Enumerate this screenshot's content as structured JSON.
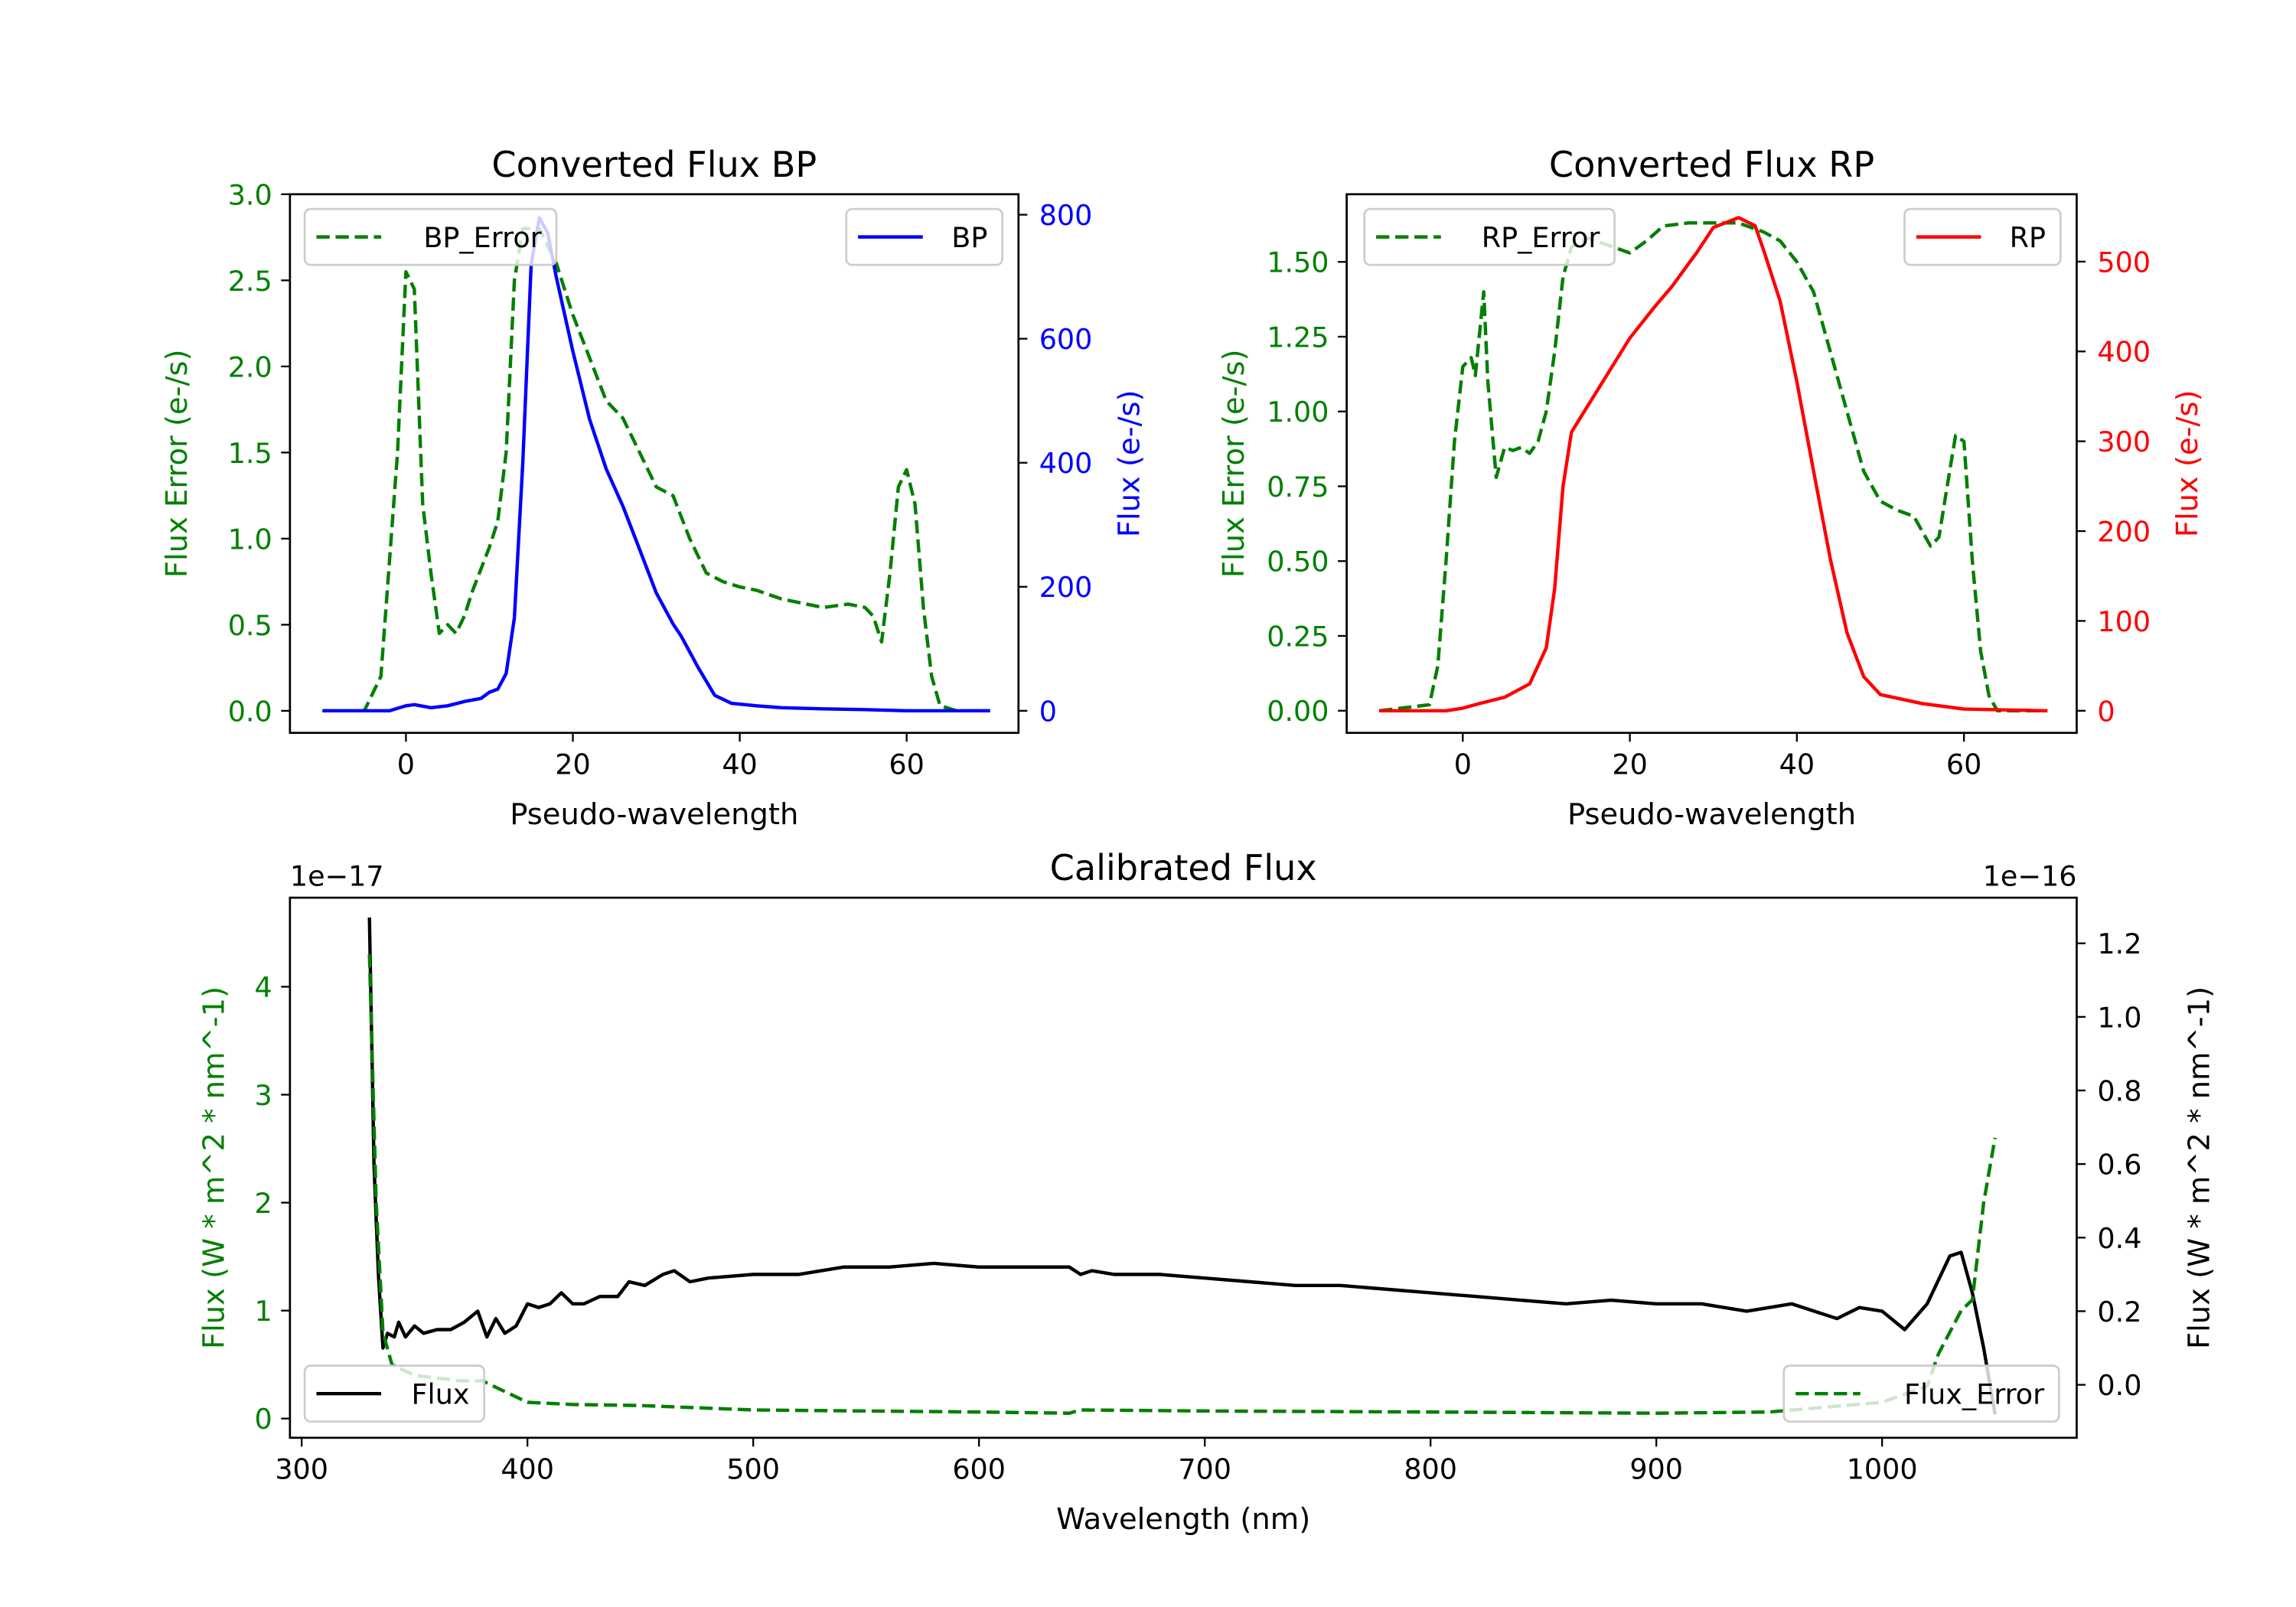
{
  "colors": {
    "green": "#008000",
    "blue": "#0000ff",
    "red": "#ff0000",
    "black": "#000000"
  },
  "chart_data": [
    {
      "type": "line",
      "title": "Converted Flux BP",
      "xlabel": "Pseudo-wavelength",
      "ylabel_left": "Flux Error (e-/s)",
      "ylabel_right": "Flux (e-/s)",
      "xlim": [
        -13.9,
        73.4
      ],
      "ylim_left": [
        -0.128,
        3.0
      ],
      "ylim_right": [
        -35.6,
        833
      ],
      "xticks": [
        0,
        20,
        40,
        60
      ],
      "yticks_left": [
        "0.0",
        "0.5",
        "1.0",
        "1.5",
        "2.0",
        "2.5",
        "3.0"
      ],
      "yticks_right": [
        "0",
        "200",
        "400",
        "600",
        "800"
      ],
      "left_color": "#008000",
      "right_color": "#0000ff",
      "series": [
        {
          "name": "BP_Error",
          "axis": "left",
          "style": "dashed",
          "color": "#008000",
          "legend": "upper-left",
          "x": [
            -10,
            -5,
            -3,
            -1,
            0,
            1,
            2,
            3,
            4,
            5,
            6,
            7,
            8,
            10,
            11,
            12,
            13,
            14,
            16,
            18,
            20,
            22,
            24,
            26,
            28,
            30,
            32,
            34,
            36,
            38,
            40,
            42,
            45,
            48,
            50,
            53,
            55,
            56,
            57,
            58,
            59,
            60,
            61,
            62,
            63,
            64,
            66,
            70
          ],
          "y": [
            0,
            0,
            0.2,
            1.5,
            2.55,
            2.45,
            1.2,
            0.8,
            0.45,
            0.5,
            0.45,
            0.55,
            0.7,
            0.95,
            1.1,
            1.5,
            2.5,
            2.8,
            2.8,
            2.6,
            2.3,
            2.05,
            1.8,
            1.7,
            1.5,
            1.3,
            1.25,
            1.0,
            0.8,
            0.75,
            0.72,
            0.7,
            0.65,
            0.62,
            0.6,
            0.62,
            0.6,
            0.55,
            0.4,
            0.8,
            1.3,
            1.4,
            1.2,
            0.6,
            0.2,
            0.03,
            0,
            0
          ]
        },
        {
          "name": "BP",
          "axis": "right",
          "style": "solid",
          "color": "#0000ff",
          "legend": "upper-right",
          "x": [
            -10,
            -2,
            0,
            1,
            3,
            5,
            7,
            9,
            10,
            11,
            12,
            13,
            14,
            15,
            16,
            17,
            18,
            20,
            22,
            24,
            26,
            28,
            30,
            32,
            33,
            35,
            37,
            39,
            42,
            45,
            50,
            55,
            60,
            70
          ],
          "y": [
            0,
            0,
            8,
            10,
            5,
            8,
            15,
            20,
            30,
            35,
            60,
            150,
            400,
            720,
            795,
            770,
            700,
            580,
            470,
            390,
            330,
            260,
            190,
            140,
            120,
            70,
            25,
            12,
            8,
            5,
            3,
            2,
            0,
            0
          ]
        }
      ]
    },
    {
      "type": "line",
      "title": "Converted Flux RP",
      "xlabel": "Pseudo-wavelength",
      "ylabel_left": "Flux Error (e-/s)",
      "ylabel_right": "Flux (e-/s)",
      "xlim": [
        -13.9,
        73.5
      ],
      "ylim_left": [
        -0.074,
        1.726
      ],
      "ylim_right": [
        -24.6,
        575
      ],
      "xticks": [
        0,
        20,
        40,
        60
      ],
      "yticks_left": [
        "0.00",
        "0.25",
        "0.50",
        "0.75",
        "1.00",
        "1.25",
        "1.50"
      ],
      "yticks_right": [
        "0",
        "100",
        "200",
        "300",
        "400",
        "500"
      ],
      "left_color": "#008000",
      "right_color": "#ff0000",
      "series": [
        {
          "name": "RP_Error",
          "axis": "left",
          "style": "dashed",
          "color": "#008000",
          "legend": "upper-left",
          "x": [
            -10,
            -4,
            -3,
            -2,
            -1,
            0,
            1,
            1.5,
            2.5,
            3,
            4,
            5,
            6,
            7,
            8,
            9,
            10,
            11,
            12,
            13,
            15,
            18,
            20,
            22,
            24,
            27,
            33,
            36,
            38,
            40,
            42,
            44,
            46,
            48,
            50,
            52,
            54,
            56,
            57,
            58,
            59,
            60,
            61,
            62,
            63,
            64,
            70
          ],
          "y": [
            0,
            0.02,
            0.15,
            0.5,
            0.9,
            1.15,
            1.18,
            1.12,
            1.4,
            1.1,
            0.78,
            0.88,
            0.87,
            0.88,
            0.86,
            0.9,
            1.0,
            1.2,
            1.45,
            1.55,
            1.58,
            1.55,
            1.53,
            1.57,
            1.62,
            1.63,
            1.63,
            1.6,
            1.57,
            1.5,
            1.4,
            1.2,
            1.0,
            0.8,
            0.7,
            0.67,
            0.65,
            0.55,
            0.58,
            0.75,
            0.92,
            0.9,
            0.5,
            0.2,
            0.05,
            0,
            0
          ]
        },
        {
          "name": "RP",
          "axis": "right",
          "style": "solid",
          "color": "#ff0000",
          "legend": "upper-right",
          "x": [
            -10,
            -2,
            0,
            2,
            5,
            8,
            10,
            11,
            12,
            13,
            14,
            17,
            20,
            23,
            25,
            28,
            30,
            33,
            35,
            36,
            38,
            40,
            42,
            44,
            46,
            48,
            50,
            55,
            60,
            70
          ],
          "y": [
            0,
            0,
            3,
            8,
            15,
            30,
            70,
            136,
            250,
            310,
            325,
            370,
            415,
            450,
            472,
            510,
            538,
            549,
            540,
            513,
            456,
            366,
            267,
            169,
            87,
            38,
            18,
            8,
            2,
            0
          ]
        }
      ]
    },
    {
      "type": "line",
      "title": "Calibrated Flux",
      "xlabel": "Wavelength (nm)",
      "ylabel_left": "Flux (W * m^2 * nm^-1)",
      "ylabel_right": "Flux (W * m^2 * nm^-1)",
      "offset_left": "1e−17",
      "offset_right": "1e−16",
      "xlim": [
        294.8,
        1086.2
      ],
      "ylim_left": [
        -0.178,
        4.825
      ],
      "ylim_right": [
        -0.144,
        1.324
      ],
      "xticks": [
        300,
        400,
        500,
        600,
        700,
        800,
        900,
        1000
      ],
      "yticks_left": [
        "0",
        "1",
        "2",
        "3",
        "4"
      ],
      "yticks_right": [
        "0.0",
        "0.2",
        "0.4",
        "0.6",
        "0.8",
        "1.0",
        "1.2"
      ],
      "left_color": "#008000",
      "right_color": "#000000",
      "series": [
        {
          "name": "Flux",
          "axis": "right",
          "style": "solid",
          "color": "#000000",
          "legend": "lower-left",
          "x": [
            330,
            332,
            334,
            336,
            338,
            341,
            343,
            346,
            350,
            354,
            360,
            366,
            372,
            378,
            382,
            386,
            390,
            395,
            400,
            405,
            410,
            415,
            420,
            425,
            432,
            440,
            445,
            452,
            460,
            465,
            472,
            480,
            500,
            520,
            540,
            560,
            580,
            600,
            620,
            640,
            645,
            650,
            660,
            680,
            700,
            720,
            740,
            760,
            780,
            800,
            820,
            840,
            860,
            880,
            900,
            920,
            940,
            960,
            980,
            990,
            1000,
            1010,
            1020,
            1030,
            1035,
            1040,
            1045,
            1050
          ],
          "y": [
            1.27,
            0.6,
            0.3,
            0.1,
            0.14,
            0.13,
            0.17,
            0.13,
            0.16,
            0.14,
            0.15,
            0.15,
            0.17,
            0.2,
            0.13,
            0.18,
            0.14,
            0.16,
            0.22,
            0.21,
            0.22,
            0.25,
            0.22,
            0.22,
            0.24,
            0.24,
            0.28,
            0.27,
            0.3,
            0.31,
            0.28,
            0.29,
            0.3,
            0.3,
            0.32,
            0.32,
            0.33,
            0.32,
            0.32,
            0.32,
            0.3,
            0.31,
            0.3,
            0.3,
            0.29,
            0.28,
            0.27,
            0.27,
            0.26,
            0.25,
            0.24,
            0.23,
            0.22,
            0.23,
            0.22,
            0.22,
            0.2,
            0.22,
            0.18,
            0.21,
            0.2,
            0.15,
            0.22,
            0.35,
            0.36,
            0.25,
            0.1,
            -0.08
          ]
        },
        {
          "name": "Flux_Error",
          "axis": "left",
          "style": "dashed",
          "color": "#008000",
          "legend": "lower-right",
          "x": [
            330,
            333,
            336,
            340,
            350,
            370,
            380,
            390,
            400,
            420,
            450,
            500,
            550,
            600,
            640,
            645,
            700,
            800,
            900,
            950,
            1000,
            1020,
            1025,
            1035,
            1040,
            1045,
            1050
          ],
          "y": [
            4.3,
            2,
            0.8,
            0.5,
            0.4,
            0.35,
            0.35,
            0.25,
            0.15,
            0.13,
            0.12,
            0.08,
            0.07,
            0.06,
            0.05,
            0.08,
            0.07,
            0.06,
            0.05,
            0.06,
            0.15,
            0.3,
            0.6,
            1.0,
            1.1,
            2.0,
            2.6
          ]
        }
      ]
    }
  ]
}
